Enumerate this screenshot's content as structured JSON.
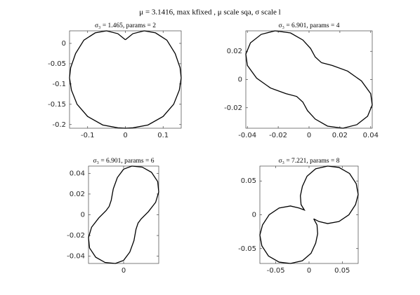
{
  "title": "μ = 3.1416, max kfixed , μ scale sqa, σ scale l",
  "chart_data": [
    {
      "type": "line",
      "title": "σ₃ = 1.465, params = 2",
      "color": "#000000",
      "x": [
        0,
        0.02,
        0.05,
        0.08,
        0.11,
        0.132,
        0.145,
        0.148,
        0.143,
        0.128,
        0.1,
        0.06,
        0.02,
        0,
        -0.02,
        -0.06,
        -0.1,
        -0.128,
        -0.143,
        -0.148,
        -0.145,
        -0.132,
        -0.11,
        -0.08,
        -0.05,
        -0.02,
        0
      ],
      "values": [
        0.009,
        0.024,
        0.031,
        0.026,
        0.008,
        -0.025,
        -0.06,
        -0.085,
        -0.115,
        -0.15,
        -0.18,
        -0.201,
        -0.208,
        -0.209,
        -0.208,
        -0.201,
        -0.18,
        -0.15,
        -0.115,
        -0.085,
        -0.06,
        -0.025,
        0.008,
        0.026,
        0.031,
        0.024,
        0.009
      ],
      "xlim": [
        -0.148,
        0.148
      ],
      "ylim": [
        -0.209,
        0.031
      ],
      "xticks": [
        -0.1,
        0,
        0.1
      ],
      "yticks": [
        -0.2,
        -0.15,
        -0.1,
        -0.05,
        0
      ]
    },
    {
      "type": "line",
      "title": "σ₃ = 6.901, params = 4",
      "color": "#000000",
      "x": [
        0.008,
        0.015,
        0.025,
        0.034,
        0.04,
        0.041,
        0.038,
        0.031,
        0.022,
        0.012,
        0.004,
        -0.001,
        -0.004,
        -0.008,
        -0.015,
        -0.025,
        -0.034,
        -0.04,
        -0.041,
        -0.038,
        -0.031,
        -0.022,
        -0.012,
        -0.004,
        0.001,
        0.004,
        0.008
      ],
      "values": [
        0.012,
        0.01,
        0.006,
        -0.001,
        -0.01,
        -0.018,
        -0.026,
        -0.032,
        -0.0345,
        -0.033,
        -0.028,
        -0.022,
        -0.016,
        -0.012,
        -0.01,
        -0.006,
        0.001,
        0.01,
        0.018,
        0.026,
        0.032,
        0.0345,
        0.033,
        0.028,
        0.022,
        0.016,
        0.012
      ],
      "xlim": [
        -0.041,
        0.041
      ],
      "ylim": [
        -0.0345,
        0.0345
      ],
      "xticks": [
        -0.04,
        -0.02,
        0,
        0.02,
        0.04
      ],
      "yticks": [
        -0.02,
        0,
        0.02
      ]
    },
    {
      "type": "line",
      "title": "σ₃ = 6.901, params = 6",
      "color": "#000000",
      "x": [
        -0.014,
        -0.012,
        -0.01,
        -0.006,
        0,
        0.008,
        0.018,
        0.027,
        0.033,
        0.034,
        0.031,
        0.024,
        0.017,
        0.014,
        0.012,
        0.01,
        0.006,
        0,
        -0.008,
        -0.018,
        -0.027,
        -0.033,
        -0.034,
        -0.031,
        -0.024,
        -0.017,
        -0.014
      ],
      "values": [
        0.008,
        0.014,
        0.025,
        0.036,
        0.044,
        0.047,
        0.046,
        0.041,
        0.032,
        0.022,
        0.012,
        0.003,
        -0.004,
        -0.008,
        -0.014,
        -0.025,
        -0.036,
        -0.044,
        -0.047,
        -0.046,
        -0.041,
        -0.032,
        -0.022,
        -0.012,
        -0.003,
        0.004,
        0.008
      ],
      "xlim": [
        -0.034,
        0.034
      ],
      "ylim": [
        -0.047,
        0.047
      ],
      "xticks": [
        0
      ],
      "yticks": [
        -0.04,
        -0.02,
        0,
        0.02,
        0.04
      ]
    },
    {
      "type": "line",
      "title": "σ₃ = 7.221, params = 8",
      "color": "#000000",
      "x": [
        0.007,
        0.015,
        0.028,
        0.045,
        0.06,
        0.07,
        0.074,
        0.071,
        0.061,
        0.045,
        0.028,
        0.01,
        -0.003,
        -0.01,
        -0.013,
        -0.012,
        -0.007,
        -0.015,
        -0.028,
        -0.045,
        -0.06,
        -0.07,
        -0.074,
        -0.071,
        -0.061,
        -0.045,
        -0.028,
        -0.01,
        0.003,
        0.01,
        0.013,
        0.012,
        0.007
      ],
      "values": [
        -0.006,
        -0.01,
        -0.013,
        -0.01,
        0,
        0.015,
        0.03,
        0.046,
        0.061,
        0.07,
        0.072,
        0.068,
        0.057,
        0.042,
        0.028,
        0.015,
        0.007,
        0.01,
        0.013,
        0.01,
        0,
        -0.015,
        -0.03,
        -0.046,
        -0.061,
        -0.07,
        -0.072,
        -0.068,
        -0.057,
        -0.042,
        -0.028,
        -0.015,
        -0.006
      ],
      "xlim": [
        -0.074,
        0.074
      ],
      "ylim": [
        -0.072,
        0.072
      ],
      "xticks": [
        -0.05,
        0,
        0.05
      ],
      "yticks": [
        -0.05,
        0,
        0.05
      ]
    }
  ]
}
